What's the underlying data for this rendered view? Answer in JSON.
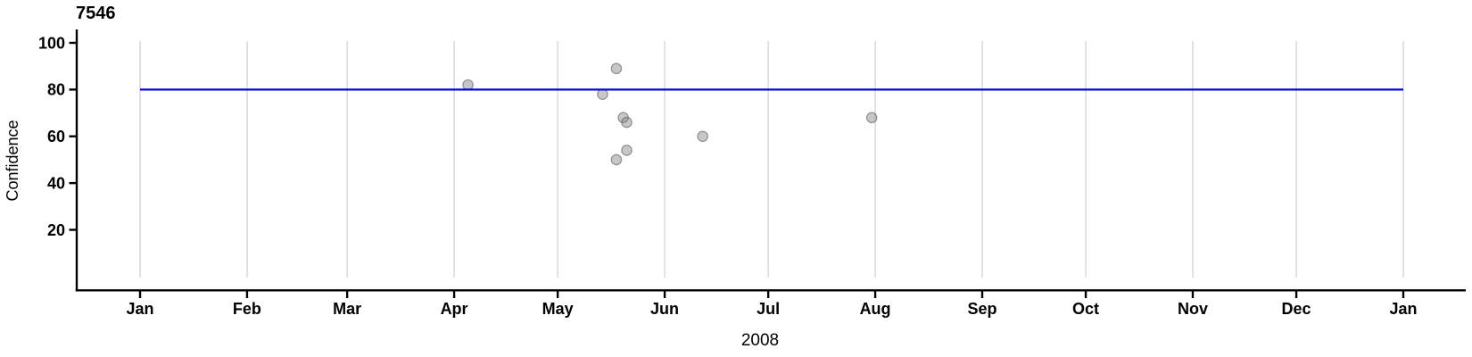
{
  "chart_data": {
    "type": "scatter",
    "title": "7546",
    "ylabel": "Confidence",
    "xlabel": "2008",
    "x_axis": {
      "unit": "months of 2008 through Jan 2009",
      "tick_labels": [
        "Jan",
        "Feb",
        "Mar",
        "Apr",
        "May",
        "Jun",
        "Jul",
        "Aug",
        "Sep",
        "Oct",
        "Nov",
        "Dec",
        "Jan"
      ],
      "tick_days": [
        0,
        31,
        60,
        91,
        121,
        152,
        182,
        213,
        244,
        274,
        305,
        335,
        366
      ],
      "range_days": [
        0,
        366
      ]
    },
    "y_axis": {
      "ticks": [
        20,
        40,
        60,
        80,
        100
      ],
      "range": [
        0,
        105
      ]
    },
    "grid": "vertical gridlines at each month, no horizontal gridlines",
    "legend": "none",
    "reference_line": {
      "confidence": 80,
      "span_days": [
        0,
        366
      ]
    },
    "points": [
      {
        "date": "2008-04-05",
        "day": 95,
        "confidence": 82
      },
      {
        "date": "2008-05-14",
        "day": 134,
        "confidence": 78
      },
      {
        "date": "2008-05-18",
        "day": 138,
        "confidence": 89
      },
      {
        "date": "2008-05-18",
        "day": 138,
        "confidence": 50
      },
      {
        "date": "2008-05-20",
        "day": 140,
        "confidence": 68
      },
      {
        "date": "2008-05-21",
        "day": 141,
        "confidence": 66
      },
      {
        "date": "2008-05-21",
        "day": 141,
        "confidence": 54
      },
      {
        "date": "2008-06-12",
        "day": 163,
        "confidence": 60
      },
      {
        "date": "2008-07-31",
        "day": 212,
        "confidence": 68
      }
    ],
    "colors": {
      "reference_line": "#0000e8",
      "gridline": "#d9d9d9",
      "axis": "#000000",
      "point_fill_effective": "#c9c9c9",
      "point_fill": "rgba(130,130,130,0.45)",
      "point_stroke": "rgba(80,80,80,0.55)"
    }
  }
}
